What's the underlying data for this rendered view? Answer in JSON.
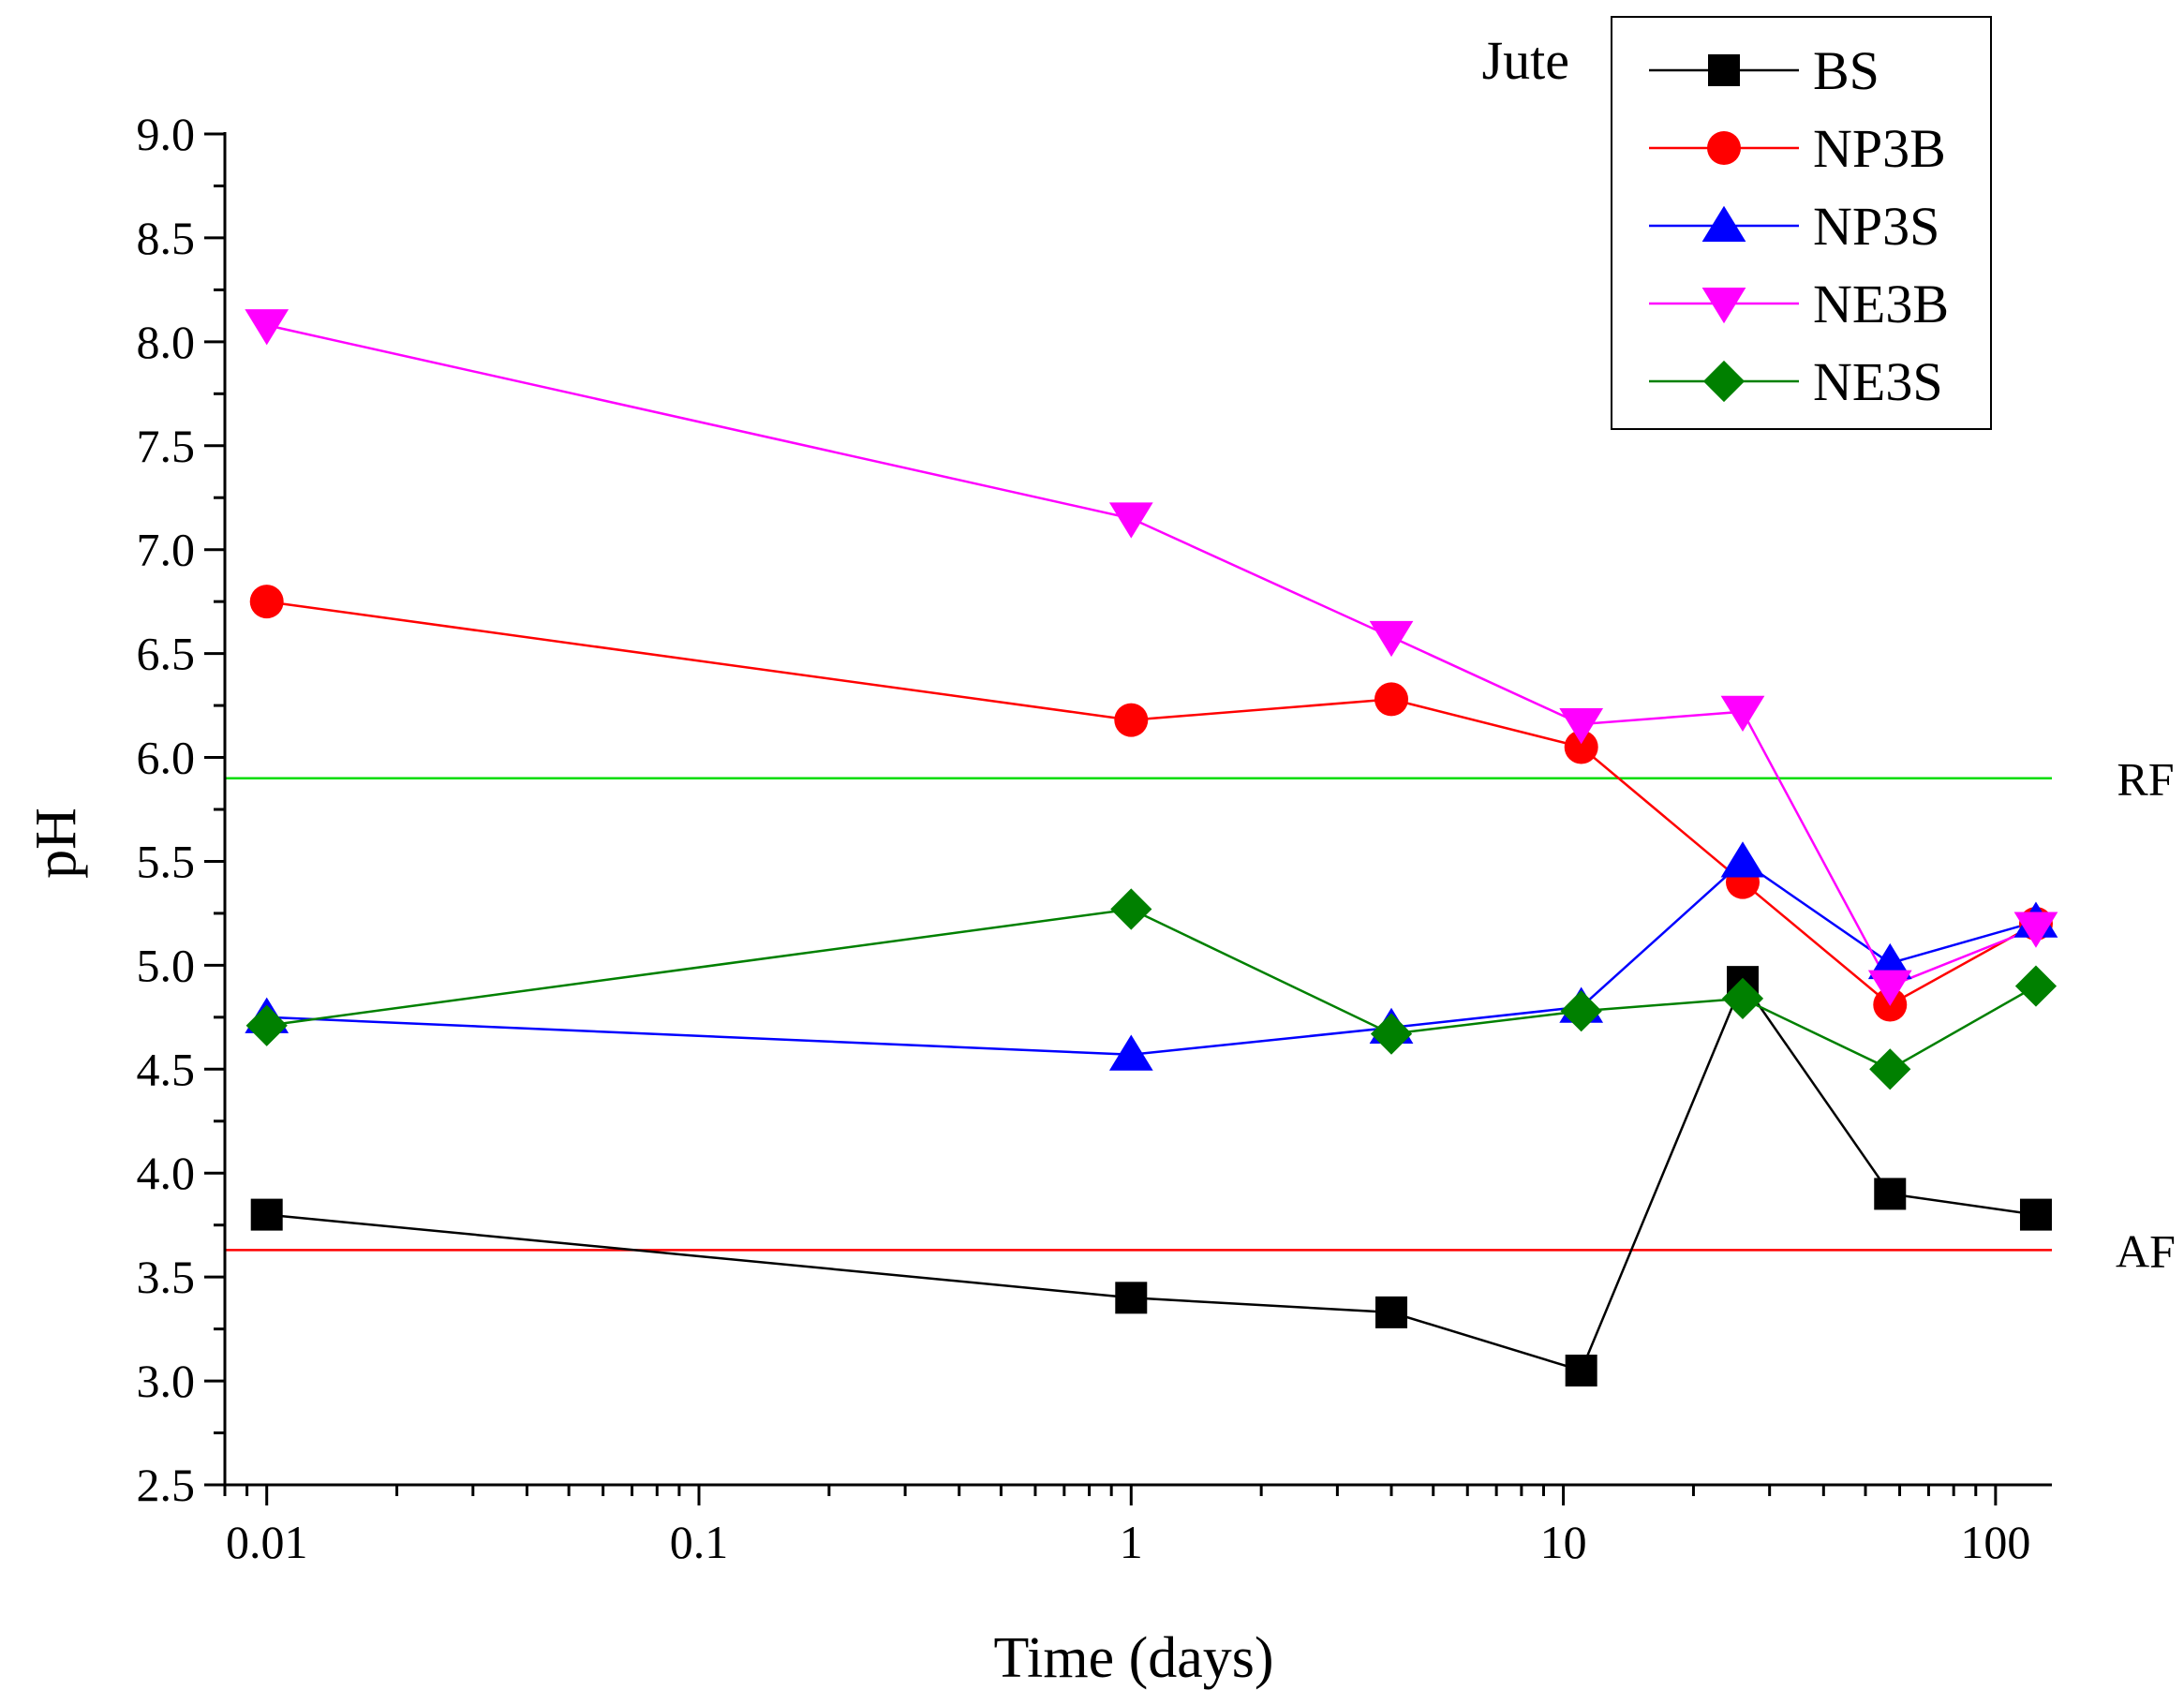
{
  "chart_data": {
    "type": "line",
    "xscale": "log",
    "xlabel": "Time (days)",
    "ylabel": "pH",
    "xlim": [
      0.008,
      135
    ],
    "ylim": [
      2.5,
      9.0
    ],
    "x_ticks": [
      0.01,
      0.1,
      1,
      10,
      100
    ],
    "x_tick_labels": [
      "0.01",
      "0.1",
      "1",
      "10",
      "100"
    ],
    "y_ticks": [
      2.5,
      3.0,
      3.5,
      4.0,
      4.5,
      5.0,
      5.5,
      6.0,
      6.5,
      7.0,
      7.5,
      8.0,
      8.5,
      9.0
    ],
    "y_tick_labels": [
      "2.5",
      "3.0",
      "3.5",
      "4.0",
      "4.5",
      "5.0",
      "5.5",
      "6.0",
      "6.5",
      "7.0",
      "7.5",
      "8.0",
      "8.5",
      "9.0"
    ],
    "grid": false,
    "legend_title": "Jute",
    "legend_position": "top-right",
    "x": [
      0.01,
      1,
      4,
      11,
      26,
      57,
      124
    ],
    "series": [
      {
        "name": "BS",
        "color": "#000000",
        "marker": "square",
        "values": [
          3.8,
          3.4,
          3.33,
          3.05,
          4.92,
          3.9,
          3.8
        ]
      },
      {
        "name": "NP3B",
        "color": "#ff0000",
        "marker": "circle",
        "values": [
          6.75,
          6.18,
          6.28,
          6.05,
          5.4,
          4.81,
          5.2
        ]
      },
      {
        "name": "NP3S",
        "color": "#0000ff",
        "marker": "triangle-up",
        "values": [
          4.75,
          4.57,
          4.7,
          4.8,
          5.5,
          5.01,
          5.21
        ]
      },
      {
        "name": "NE3B",
        "color": "#ff00ff",
        "marker": "triangle-down",
        "values": [
          8.08,
          7.15,
          6.58,
          6.16,
          6.22,
          4.9,
          5.18
        ]
      },
      {
        "name": "NE3S",
        "color": "#008000",
        "marker": "diamond",
        "values": [
          4.71,
          5.27,
          4.67,
          4.78,
          4.84,
          4.5,
          4.9
        ]
      }
    ],
    "reference_lines": [
      {
        "label": "RF",
        "value": 5.9,
        "color": "#00dd00"
      },
      {
        "label": "AF",
        "value": 3.63,
        "color": "#ff0000"
      }
    ]
  }
}
